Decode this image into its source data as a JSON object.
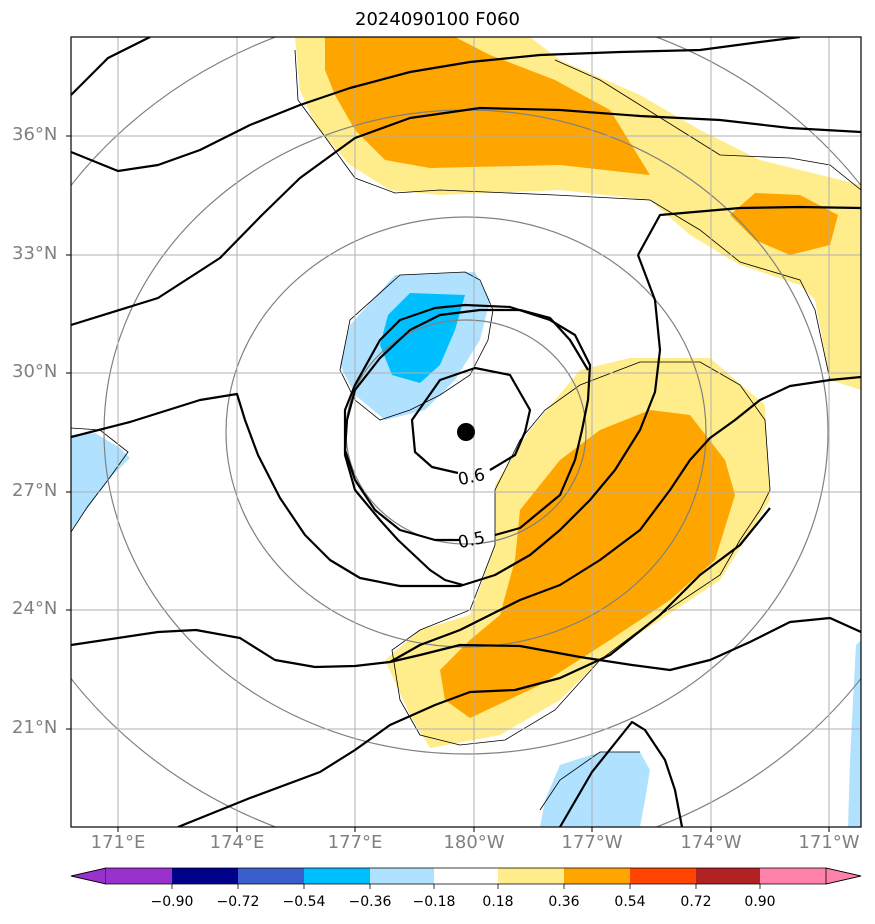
{
  "title": "2024090100 F060",
  "lat_labels": [
    "36°N",
    "33°N",
    "30°N",
    "27°N",
    "24°N",
    "21°N"
  ],
  "lon_labels": [
    "171°E",
    "174°E",
    "177°E",
    "180°W",
    "177°W",
    "174°W",
    "171°W"
  ],
  "contour_labels": [
    "0.6",
    "0.5"
  ],
  "colorbar": {
    "ticks": [
      "−0.90",
      "−0.72",
      "−0.54",
      "−0.36",
      "−0.18",
      "0.18",
      "0.36",
      "0.54",
      "0.72",
      "0.90"
    ],
    "colors": [
      "#9932cc",
      "#00008b",
      "#3a5fcd",
      "#00bfff",
      "#b0e2ff",
      "#ffffff",
      "#ffec8b",
      "#ffa500",
      "#ff4500",
      "#b22222",
      "#ff82ab"
    ]
  },
  "colors": {
    "light_yellow": "#ffec8b",
    "orange": "#ffa500",
    "light_blue": "#b0e2ff",
    "deep_sky_blue": "#00bfff",
    "contour": "#000000",
    "range_ring": "#808080",
    "grid": "#b0b0b0"
  },
  "storm_center": {
    "lat": 28.5,
    "lon": "180°W"
  }
}
